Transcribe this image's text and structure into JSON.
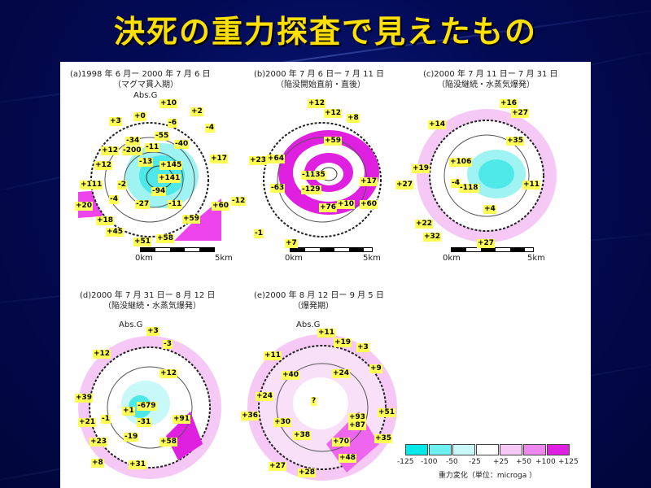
{
  "title": "決死の重力探査で見えたもの",
  "panels": [
    {
      "caption": "(a)1998 年 6 月ー 2000 年 7 月 6 日",
      "subcaption": "（マグマ貫入期）",
      "absg": "Abs.G",
      "scale": {
        "start": "0km",
        "end": "5km"
      },
      "labels": [
        "+10",
        "+2",
        "-4",
        "+3",
        "+0",
        "-6",
        "-34",
        "-55",
        "-40",
        "+12",
        "-200",
        "-11",
        "+145",
        "+17",
        "-13",
        "+141",
        "+12",
        "-94",
        "+111",
        "-2",
        "-4",
        "-27",
        "-11",
        "+60",
        "+20",
        "+18",
        "+59",
        "+45",
        "+51",
        "+58"
      ]
    },
    {
      "caption": "(b)2000 年 7 月 6 日ー 7 月 11 日",
      "subcaption": "（陥没開始直前・直後）",
      "absg": "",
      "scale": {
        "start": "0km",
        "end": "5km"
      },
      "labels": [
        "+12",
        "+12",
        "+8",
        "+59",
        "+23",
        "+64",
        "-1135",
        "+17",
        "-63",
        "-129",
        "+60",
        "+76",
        "+10",
        "-12",
        "-1",
        "+7"
      ]
    },
    {
      "caption": "(c)2000 年 7 月 11 日ー 7 月 31 日",
      "subcaption": "（陥没継続・水蒸気爆発）",
      "absg": "",
      "scale": {
        "start": "0km",
        "end": "5km"
      },
      "labels": [
        "+16",
        "+27",
        "+14",
        "+35",
        "+19",
        "+106",
        "+27",
        "-4",
        "-118",
        "+11",
        "+4",
        "+22",
        "+32",
        "+27"
      ]
    },
    {
      "caption": "(d)2000 年 7 月 31 日ー 8 月 12 日",
      "subcaption": "（陥没継続・水蒸気爆発）",
      "absg": "Abs.G",
      "scale": {
        "start": "",
        "end": ""
      },
      "labels": [
        "+3",
        "-3",
        "+12",
        "+12",
        "+39",
        "+1",
        "-1",
        "-679",
        "+21",
        "-31",
        "+91",
        "-19",
        "+23",
        "+58",
        "+8",
        "+31"
      ]
    },
    {
      "caption": "(e)2000 年 8 月 12 日ー 9 月 5 日",
      "subcaption": "（爆発期）",
      "absg": "Abs.G",
      "scale": {
        "start": "",
        "end": ""
      },
      "labels": [
        "+11",
        "+19",
        "+3",
        "+11",
        "+40",
        "+24",
        "+9",
        "+24",
        "?",
        "+36",
        "+30",
        "+93",
        "+51",
        "+87",
        "+38",
        "+70",
        "+35",
        "+48",
        "+27",
        "+28"
      ]
    }
  ],
  "legend": {
    "ticks": [
      "-125",
      "-100",
      "-50",
      "-25",
      "+25",
      "+50",
      "+100",
      "+125"
    ],
    "caption": "重力変化（単位：microga ）",
    "colors": [
      "#00e8e8",
      "#6ff0f0",
      "#c8f8f8",
      "#ffffff",
      "#f5c8f5",
      "#ee88ee",
      "#e020e0"
    ]
  },
  "colors": {
    "title": "#ffe000",
    "background": "#020a55",
    "label_bg": "#ffff55"
  }
}
